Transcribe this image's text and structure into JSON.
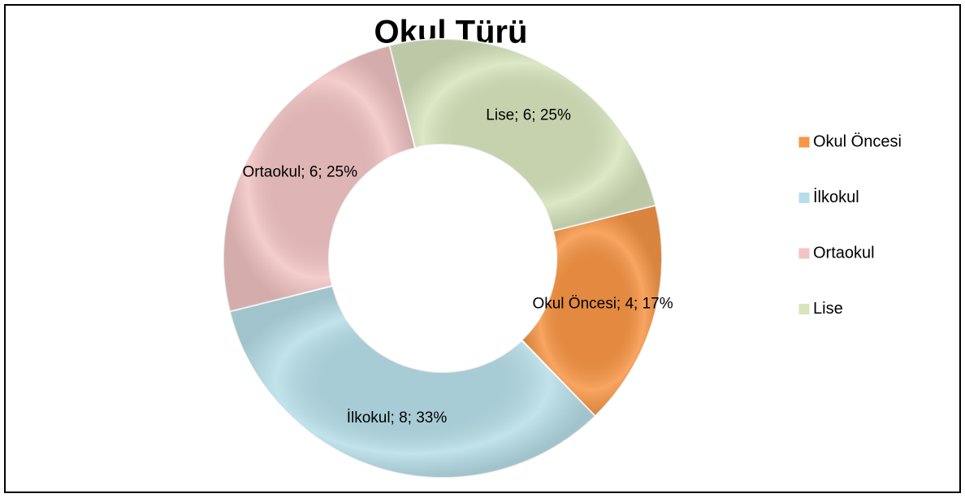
{
  "chart_data": {
    "type": "donut",
    "title": "Okul Türü",
    "categories": [
      "Okul Öncesi",
      "İlkokul",
      "Ortaokul",
      "Lise"
    ],
    "values": [
      4,
      8,
      6,
      6
    ],
    "value_labels": [
      "Okul Öncesi; 4; 17%",
      "İlkokul; 8; 33%",
      "Ortaokul; 6; 25%",
      "Lise; 6; 25%"
    ],
    "colors": [
      "#f79646",
      "#b7dee8",
      "#f2c4c4",
      "#d7e4bd"
    ],
    "legend": "right"
  }
}
